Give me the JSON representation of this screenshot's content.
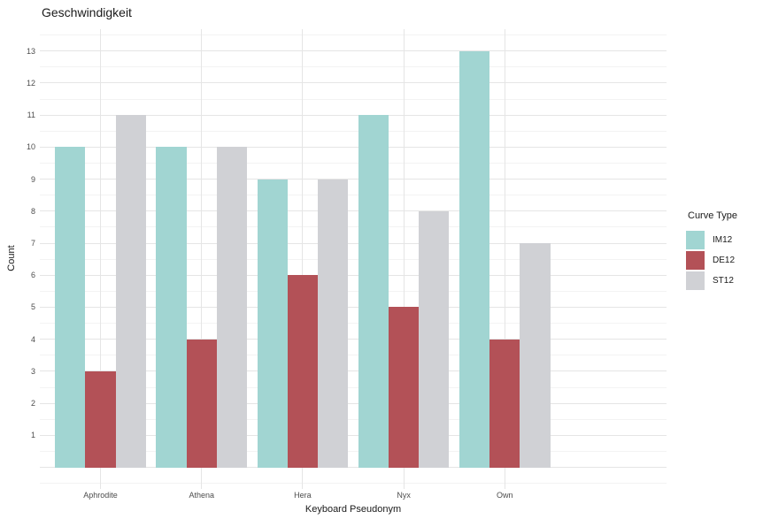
{
  "title": "Geschwindigkeit",
  "x_axis_title": "Keyboard Pseudonym",
  "y_axis_title": "Count",
  "legend": {
    "title": "Curve Type",
    "items": [
      {
        "label": "IM12",
        "color": "#a1d5d2"
      },
      {
        "label": "DE12",
        "color": "#b35157"
      },
      {
        "label": "ST12",
        "color": "#d0d1d5"
      }
    ]
  },
  "chart_data": {
    "type": "bar",
    "title": "Geschwindigkeit",
    "xlabel": "Keyboard Pseudonym",
    "ylabel": "Count",
    "categories": [
      "Aphrodite",
      "Athena",
      "Hera",
      "Nyx",
      "Own"
    ],
    "series": [
      {
        "name": "IM12",
        "color": "#a1d5d2",
        "values": [
          10,
          10,
          9,
          11,
          13
        ]
      },
      {
        "name": "DE12",
        "color": "#b35157",
        "values": [
          3,
          4,
          6,
          5,
          4
        ]
      },
      {
        "name": "ST12",
        "color": "#d0d1d5",
        "values": [
          11,
          10,
          9,
          8,
          7
        ]
      }
    ],
    "y_ticks": [
      1,
      2,
      3,
      4,
      5,
      6,
      7,
      8,
      9,
      10,
      11,
      12,
      13
    ],
    "ylim": [
      -0.68,
      13.65
    ],
    "bar_layout": "dodged",
    "grid": true,
    "grid_major_color": "#e5e5e5",
    "grid_minor_color": "#f3f3f3",
    "background": "#ffffff",
    "legend_title": "Curve Type",
    "legend_position": "right"
  }
}
